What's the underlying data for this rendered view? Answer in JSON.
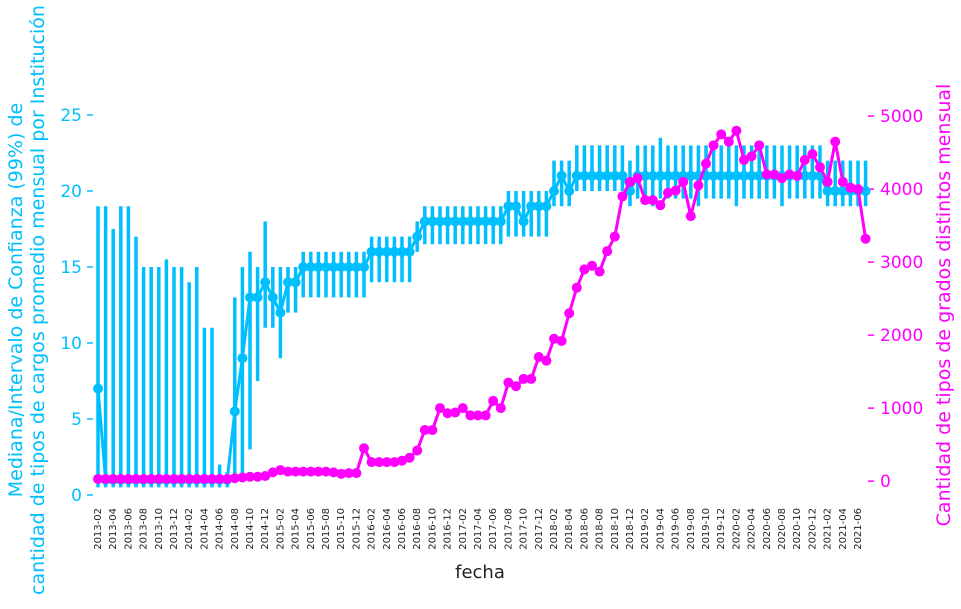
{
  "chart_data": {
    "type": "line",
    "xlabel": "fecha",
    "ylabel": "Mediana/Intervalo de Confianza (99%) de\ncantidad de tipos de cargos promedio mensual por Institución",
    "y2label": "Cantidad de tipos de grados distintos mensual",
    "categories": [
      "2013-02",
      null,
      "2013-04",
      null,
      "2013-06",
      null,
      "2013-08",
      null,
      "2013-10",
      null,
      "2013-12",
      null,
      "2014-02",
      null,
      "2014-04",
      null,
      "2014-06",
      null,
      "2014-08",
      null,
      "2014-10",
      null,
      "2014-12",
      null,
      "2015-02",
      null,
      "2015-04",
      null,
      "2015-06",
      null,
      "2015-08",
      null,
      "2015-10",
      null,
      "2015-12",
      null,
      "2016-02",
      null,
      "2016-04",
      null,
      "2016-06",
      null,
      "2016-08",
      null,
      "2016-10",
      null,
      "2016-12",
      null,
      "2017-02",
      null,
      "2017-04",
      null,
      "2017-06",
      null,
      "2017-08",
      null,
      "2017-10",
      null,
      "2017-12",
      null,
      "2018-02",
      null,
      "2018-04",
      null,
      "2018-06",
      null,
      "2018-08",
      null,
      "2018-10",
      null,
      "2018-12",
      null,
      "2019-02",
      null,
      "2019-04",
      null,
      "2019-06",
      null,
      "2019-08",
      null,
      "2019-10",
      null,
      "2019-12",
      null,
      "2020-02",
      null,
      "2020-04",
      null,
      "2020-06",
      null,
      "2020-08",
      null,
      "2020-10",
      null,
      "2020-12",
      null,
      "2021-02",
      null,
      "2021-04",
      null,
      "2021-06",
      null
    ],
    "series": [
      {
        "color": "#00bfff",
        "values": [
          7,
          1,
          1,
          1,
          1,
          1,
          1,
          1,
          1,
          1,
          1,
          1,
          1,
          1,
          1,
          1,
          1,
          1,
          5.5,
          9,
          13,
          13,
          14,
          13,
          12,
          14,
          14,
          15,
          15,
          15,
          15,
          15,
          15,
          15,
          15,
          15,
          16,
          16,
          16,
          16,
          16,
          16,
          17,
          18,
          18,
          18,
          18,
          18,
          18,
          18,
          18,
          18,
          18,
          18,
          19,
          19,
          18,
          19,
          19,
          19,
          20,
          21,
          20,
          21,
          21,
          21,
          21,
          21,
          21,
          21,
          20,
          21,
          21,
          21,
          21,
          21,
          21,
          21,
          21,
          21,
          21,
          21,
          21,
          21,
          21,
          21,
          21,
          21,
          21,
          21,
          21,
          21,
          21,
          21,
          21,
          21,
          20,
          20,
          20,
          20,
          20,
          20
        ],
        "lower": [
          0.5,
          0.5,
          0.5,
          0.5,
          0.5,
          0.5,
          0.5,
          0.5,
          0.5,
          0.5,
          0.5,
          0.5,
          0.5,
          0.5,
          0.5,
          0.5,
          0.5,
          0.5,
          1,
          1,
          3,
          7.5,
          11,
          11,
          9,
          12,
          12,
          13,
          13,
          13,
          13,
          13,
          13,
          13,
          13,
          13,
          14,
          14,
          14,
          14,
          14,
          14,
          16,
          16.5,
          16.5,
          16.5,
          16.5,
          16.5,
          16.5,
          16.5,
          16.5,
          16.5,
          16.5,
          16.5,
          17,
          17,
          17,
          17,
          17,
          17,
          19,
          19,
          19,
          20,
          20,
          20,
          20,
          20,
          20,
          20,
          19,
          19.5,
          19.5,
          19,
          19.5,
          19.5,
          19.5,
          19.5,
          19.5,
          19,
          19.5,
          19.5,
          19.5,
          19.5,
          19,
          19.5,
          19.5,
          19.5,
          19.5,
          19.5,
          19,
          19.5,
          19.5,
          19.5,
          19.5,
          19.5,
          19,
          19,
          19,
          19,
          19,
          19
        ],
        "upper": [
          19,
          19,
          17.5,
          19,
          19,
          17,
          15,
          15,
          15,
          15.5,
          15,
          15,
          14,
          15,
          11,
          11,
          2,
          1.5,
          13,
          15,
          16,
          15,
          18,
          15,
          15,
          15,
          15,
          16,
          16,
          16,
          16,
          16,
          16,
          16,
          16,
          16,
          17,
          17,
          17,
          17,
          17,
          17,
          18,
          19,
          19,
          19,
          19,
          19,
          19,
          19,
          19,
          19,
          19,
          19,
          20,
          20,
          20,
          20,
          20,
          20,
          22,
          22,
          22,
          23,
          23,
          23,
          23,
          23,
          23,
          23,
          22,
          23,
          23,
          23,
          23.5,
          23,
          23,
          23,
          23,
          23,
          23,
          23,
          23,
          23,
          23,
          23,
          23,
          23,
          23,
          23,
          23,
          23,
          23,
          23,
          23,
          23,
          22,
          22,
          22,
          22,
          22,
          22
        ]
      },
      {
        "color": "#ff00ff",
        "axis": "y2",
        "values": [
          30,
          30,
          30,
          30,
          30,
          30,
          30,
          30,
          30,
          30,
          30,
          30,
          30,
          30,
          30,
          30,
          30,
          30,
          40,
          50,
          60,
          60,
          70,
          120,
          150,
          130,
          130,
          130,
          130,
          130,
          130,
          120,
          100,
          110,
          110,
          450,
          260,
          260,
          260,
          260,
          280,
          320,
          420,
          700,
          700,
          1000,
          930,
          940,
          1000,
          900,
          900,
          900,
          1100,
          1000,
          1350,
          1300,
          1400,
          1400,
          1700,
          1650,
          1950,
          1920,
          2300,
          2650,
          2900,
          2950,
          2870,
          3150,
          3350,
          3900,
          4100,
          4150,
          3850,
          3850,
          3780,
          3950,
          3980,
          4100,
          3630,
          4050,
          4350,
          4600,
          4750,
          4650,
          4800,
          4400,
          4450,
          4600,
          4200,
          4200,
          4150,
          4200,
          4180,
          4400,
          4480,
          4300,
          4100,
          4650,
          4100,
          4020,
          4000,
          3320
        ]
      }
    ],
    "ylim": [
      0,
      28
    ],
    "yticks": [
      0,
      5,
      10,
      15,
      20,
      25
    ],
    "y2lim": [
      -190,
      5640
    ],
    "y2ticks": [
      0,
      1000,
      2000,
      3000,
      4000,
      5000
    ]
  }
}
